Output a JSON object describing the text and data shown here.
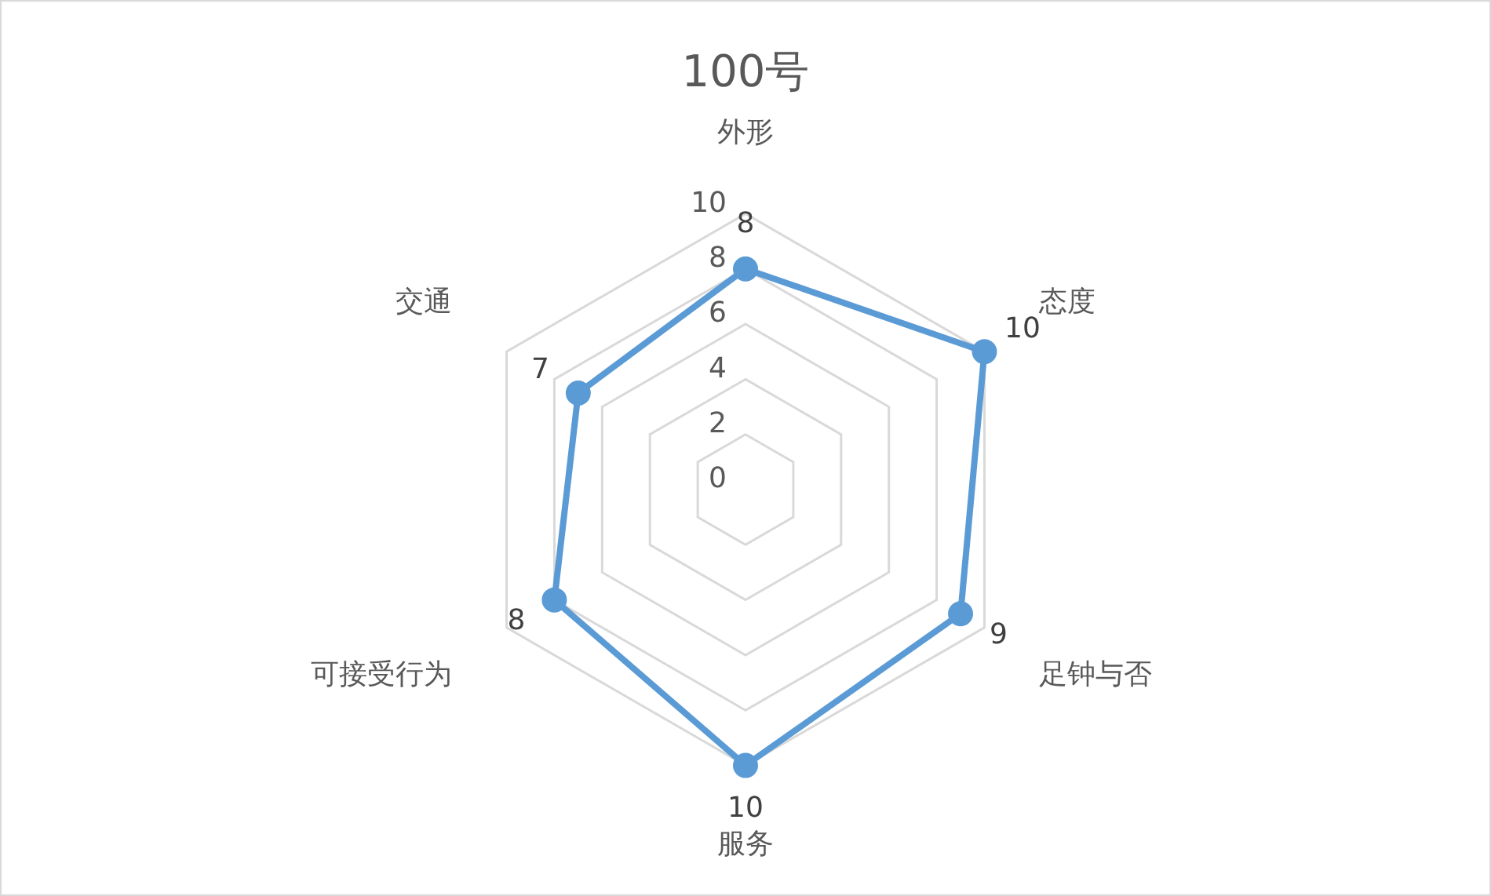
{
  "chart_data": {
    "type": "radar",
    "title": "100号",
    "categories": [
      "外形",
      "态度",
      "足钟与否",
      "服务",
      "可接受行为",
      "交通"
    ],
    "series": [
      {
        "color": "#5b9bd5",
        "values": [
          8,
          10,
          9,
          10,
          8,
          7
        ]
      }
    ],
    "ylim": [
      0,
      10
    ],
    "yticks": [
      0,
      2,
      4,
      6,
      8,
      10
    ],
    "grid": true,
    "marker": "circle",
    "data_labels": true
  }
}
